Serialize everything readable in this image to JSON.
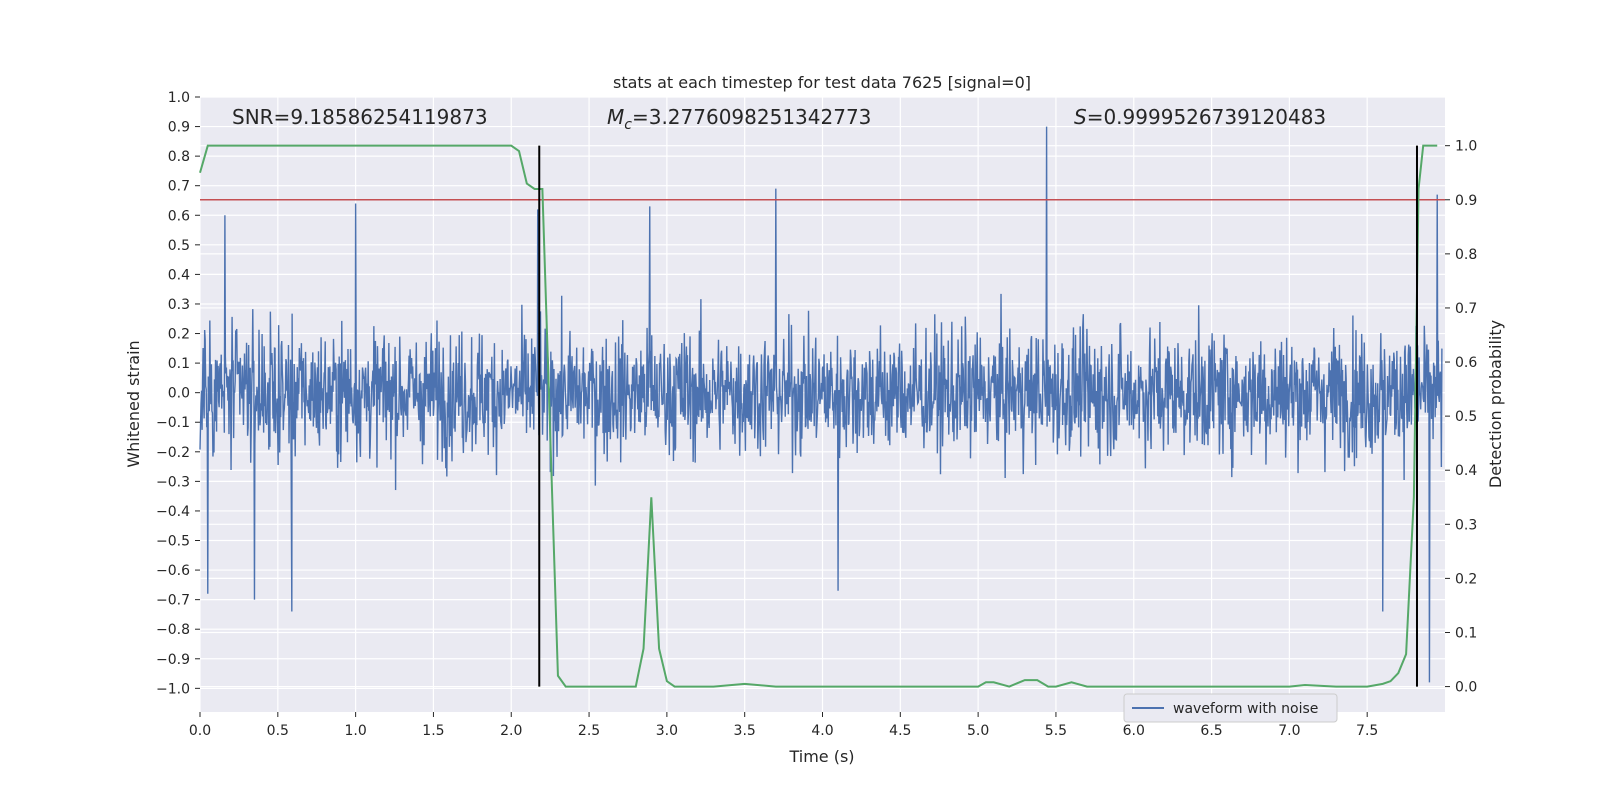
{
  "chart_data": {
    "type": "line",
    "title": "stats at each timestep for test data 7625 [signal=0]",
    "xlabel": "Time (s)",
    "ylabel_left": "Whitened strain",
    "ylabel_right": "Detection probability",
    "xlim": [
      0.0,
      8.0
    ],
    "ylim_left": [
      -1.08,
      1.0
    ],
    "ylim_right": [
      -0.047,
      1.09
    ],
    "x_ticks": [
      "0.0",
      "0.5",
      "1.0",
      "1.5",
      "2.0",
      "2.5",
      "3.0",
      "3.5",
      "4.0",
      "4.5",
      "5.0",
      "5.5",
      "6.0",
      "6.5",
      "7.0",
      "7.5"
    ],
    "y_ticks_left": [
      "1.0",
      "0.9",
      "0.8",
      "0.7",
      "0.6",
      "0.5",
      "0.4",
      "0.3",
      "0.2",
      "0.1",
      "0.0",
      "−0.1",
      "−0.2",
      "−0.3",
      "−0.4",
      "−0.5",
      "−0.6",
      "−0.7",
      "−0.8",
      "−0.9",
      "−1.0"
    ],
    "y_ticks_right": [
      "1.0",
      "0.9",
      "0.8",
      "0.7",
      "0.6",
      "0.5",
      "0.4",
      "0.3",
      "0.2",
      "0.1",
      "0.0"
    ],
    "grid": true,
    "annotations": {
      "snr_prefix": "SNR=",
      "snr_value": "9.18586254119873",
      "mc_symbol": "M",
      "mc_sub": "c",
      "mc_value": "=3.2776098251342773",
      "s_symbol": "S",
      "s_value": "=0.9999526739120483"
    },
    "threshold_right": 0.9,
    "vertical_lines_x": [
      2.18,
      7.82
    ],
    "series": [
      {
        "name": "waveform with noise",
        "axis": "left",
        "style": "dense-noise",
        "color": "#4c72b0",
        "envelope_approx": 0.35,
        "spikes": [
          {
            "x": 0.05,
            "y": -0.68
          },
          {
            "x": 0.16,
            "y": 0.6
          },
          {
            "x": 0.35,
            "y": -0.7
          },
          {
            "x": 0.59,
            "y": -0.74
          },
          {
            "x": 1.0,
            "y": 0.64
          },
          {
            "x": 2.17,
            "y": 0.62
          },
          {
            "x": 2.89,
            "y": 0.63
          },
          {
            "x": 3.7,
            "y": 0.69
          },
          {
            "x": 4.1,
            "y": -0.67
          },
          {
            "x": 5.44,
            "y": 0.9
          },
          {
            "x": 7.6,
            "y": -0.74
          },
          {
            "x": 7.9,
            "y": -0.98
          },
          {
            "x": 7.95,
            "y": 0.67
          }
        ]
      },
      {
        "name": "",
        "axis": "right",
        "color": "#55a868",
        "x": [
          0.0,
          0.05,
          0.1,
          0.2,
          0.5,
          1.0,
          1.5,
          2.0,
          2.05,
          2.1,
          2.15,
          2.2,
          2.3,
          2.35,
          2.4,
          2.5,
          2.6,
          2.7,
          2.8,
          2.85,
          2.9,
          2.95,
          3.0,
          3.05,
          3.1,
          3.3,
          3.5,
          3.7,
          4.0,
          4.5,
          4.8,
          5.0,
          5.05,
          5.1,
          5.2,
          5.3,
          5.38,
          5.45,
          5.5,
          5.6,
          5.7,
          6.0,
          6.5,
          7.0,
          7.1,
          7.3,
          7.5,
          7.6,
          7.65,
          7.7,
          7.75,
          7.8,
          7.83,
          7.86,
          7.9,
          7.95
        ],
        "y": [
          0.95,
          1.0,
          1.0,
          1.0,
          1.0,
          1.0,
          1.0,
          1.0,
          0.99,
          0.93,
          0.92,
          0.92,
          0.02,
          0.0,
          0.0,
          0.0,
          0.0,
          0.0,
          0.0,
          0.07,
          0.35,
          0.07,
          0.01,
          0.0,
          0.0,
          0.0,
          0.005,
          0.0,
          0.0,
          0.0,
          0.0,
          0.0,
          0.008,
          0.008,
          0.0,
          0.012,
          0.012,
          0.0,
          0.0,
          0.008,
          0.0,
          0.0,
          0.0,
          0.0,
          0.003,
          0.0,
          0.0,
          0.005,
          0.01,
          0.025,
          0.06,
          0.35,
          0.92,
          1.0,
          1.0,
          1.0
        ]
      }
    ],
    "legend_placement": "lower-right"
  }
}
